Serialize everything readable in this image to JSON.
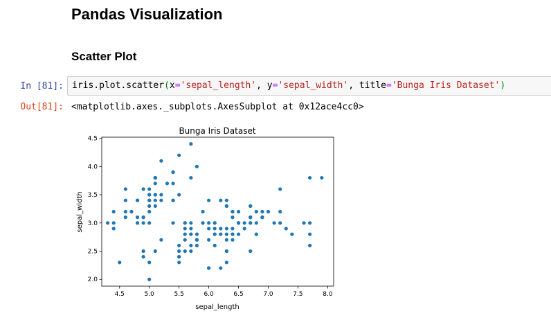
{
  "page": {
    "heading": "Pandas Visualization",
    "subheading": "Scatter Plot"
  },
  "cell": {
    "in_prompt": "In [81]:",
    "out_prompt": "Out[81]:",
    "code": {
      "obj": "iris.plot.scatter",
      "open_paren": "(",
      "arg1_name": "x",
      "eq": "=",
      "arg1_value": "'sepal_length'",
      "comma1": ", ",
      "arg2_name": "y",
      "arg2_value": "'sepal_width'",
      "comma2": ", ",
      "arg3_name": "title",
      "arg3_value": "'Bunga Iris Dataset'",
      "close_paren": ")"
    },
    "output_text": "<matplotlib.axes._subplots.AxesSubplot at 0x12ace4cc0>"
  },
  "colors": {
    "marker": "#1f77b4",
    "in_prompt": "#303f9f",
    "out_prompt": "#d84315"
  },
  "chart_data": {
    "type": "scatter",
    "title": "Bunga Iris Dataset",
    "xlabel": "sepal_length",
    "ylabel": "sepal_width",
    "xlim": [
      4.2,
      8.1
    ],
    "ylim": [
      1.88,
      4.52
    ],
    "xticks": [
      4.5,
      5.0,
      5.5,
      6.0,
      6.5,
      7.0,
      7.5,
      8.0
    ],
    "xtick_labels": [
      "4.5",
      "5.0",
      "5.5",
      "6.0",
      "6.5",
      "7.0",
      "7.5",
      "8.0"
    ],
    "yticks": [
      2.0,
      2.5,
      3.0,
      3.5,
      4.0,
      4.5
    ],
    "ytick_labels": [
      "2.0",
      "2.5",
      "3.0",
      "3.5",
      "4.0",
      "4.5"
    ],
    "grid": false,
    "x": [
      5.1,
      4.9,
      4.7,
      4.6,
      5.0,
      5.4,
      4.6,
      5.0,
      4.4,
      4.9,
      5.4,
      4.8,
      4.8,
      4.3,
      5.8,
      5.7,
      5.4,
      5.1,
      5.7,
      5.1,
      5.4,
      5.1,
      4.6,
      5.1,
      4.8,
      5.0,
      5.0,
      5.2,
      5.2,
      4.7,
      4.8,
      5.4,
      5.2,
      5.5,
      4.9,
      5.0,
      5.5,
      4.9,
      4.4,
      5.1,
      5.0,
      4.5,
      4.4,
      5.0,
      5.1,
      4.8,
      5.1,
      4.6,
      5.3,
      5.0,
      7.0,
      6.4,
      6.9,
      5.5,
      6.5,
      5.7,
      6.3,
      4.9,
      6.6,
      5.2,
      5.0,
      5.9,
      6.0,
      6.1,
      5.6,
      6.7,
      5.6,
      5.8,
      6.2,
      5.6,
      5.9,
      6.1,
      6.3,
      6.1,
      6.4,
      6.6,
      6.8,
      6.7,
      6.0,
      5.7,
      5.5,
      5.5,
      5.8,
      6.0,
      5.4,
      6.0,
      6.7,
      6.3,
      5.6,
      5.5,
      5.5,
      6.1,
      5.8,
      5.0,
      5.6,
      5.7,
      5.7,
      6.2,
      5.1,
      5.7,
      6.3,
      5.8,
      7.1,
      6.3,
      6.5,
      7.6,
      4.9,
      7.3,
      6.7,
      7.2,
      6.5,
      6.4,
      6.8,
      5.7,
      5.8,
      6.4,
      6.5,
      7.7,
      7.7,
      6.0,
      6.9,
      5.6,
      7.7,
      6.3,
      6.7,
      7.2,
      6.2,
      6.1,
      6.4,
      7.2,
      7.4,
      7.9,
      6.4,
      6.3,
      6.1,
      7.7,
      6.3,
      6.4,
      6.0,
      6.9,
      6.7,
      6.9,
      5.8,
      6.8,
      6.7,
      6.7,
      6.3,
      6.5,
      6.2,
      5.9
    ],
    "y": [
      3.5,
      3.0,
      3.2,
      3.1,
      3.6,
      3.9,
      3.4,
      3.4,
      2.9,
      3.1,
      3.7,
      3.4,
      3.0,
      3.0,
      4.0,
      4.4,
      3.9,
      3.5,
      3.8,
      3.8,
      3.4,
      3.7,
      3.6,
      3.3,
      3.4,
      3.0,
      3.4,
      3.5,
      3.4,
      3.2,
      3.1,
      3.4,
      4.1,
      4.2,
      3.1,
      3.2,
      3.5,
      3.6,
      3.0,
      3.4,
      3.5,
      2.3,
      3.2,
      3.5,
      3.8,
      3.0,
      3.8,
      3.2,
      3.7,
      3.3,
      3.2,
      3.2,
      3.1,
      2.3,
      2.8,
      2.8,
      3.3,
      2.4,
      2.9,
      2.7,
      2.0,
      3.0,
      2.2,
      2.9,
      2.9,
      3.1,
      3.0,
      2.7,
      2.2,
      2.5,
      3.2,
      2.8,
      2.5,
      2.8,
      2.9,
      3.0,
      2.8,
      3.0,
      2.9,
      2.6,
      2.4,
      2.4,
      2.7,
      2.7,
      3.0,
      3.4,
      3.1,
      2.3,
      3.0,
      2.5,
      2.6,
      3.0,
      2.6,
      2.3,
      2.7,
      3.0,
      2.9,
      2.9,
      2.5,
      2.8,
      3.3,
      2.7,
      3.0,
      2.9,
      3.0,
      3.0,
      2.5,
      2.9,
      2.5,
      3.6,
      3.2,
      2.7,
      3.0,
      2.5,
      2.8,
      3.2,
      3.0,
      3.8,
      2.6,
      2.2,
      3.2,
      2.8,
      2.8,
      2.7,
      3.3,
      3.2,
      2.8,
      3.0,
      2.8,
      3.0,
      2.8,
      3.8,
      2.8,
      2.8,
      2.6,
      3.0,
      3.4,
      3.1,
      3.0,
      3.1,
      3.1,
      3.1,
      2.7,
      3.2,
      3.3,
      3.0,
      2.5,
      3.0,
      3.4,
      3.0
    ]
  }
}
